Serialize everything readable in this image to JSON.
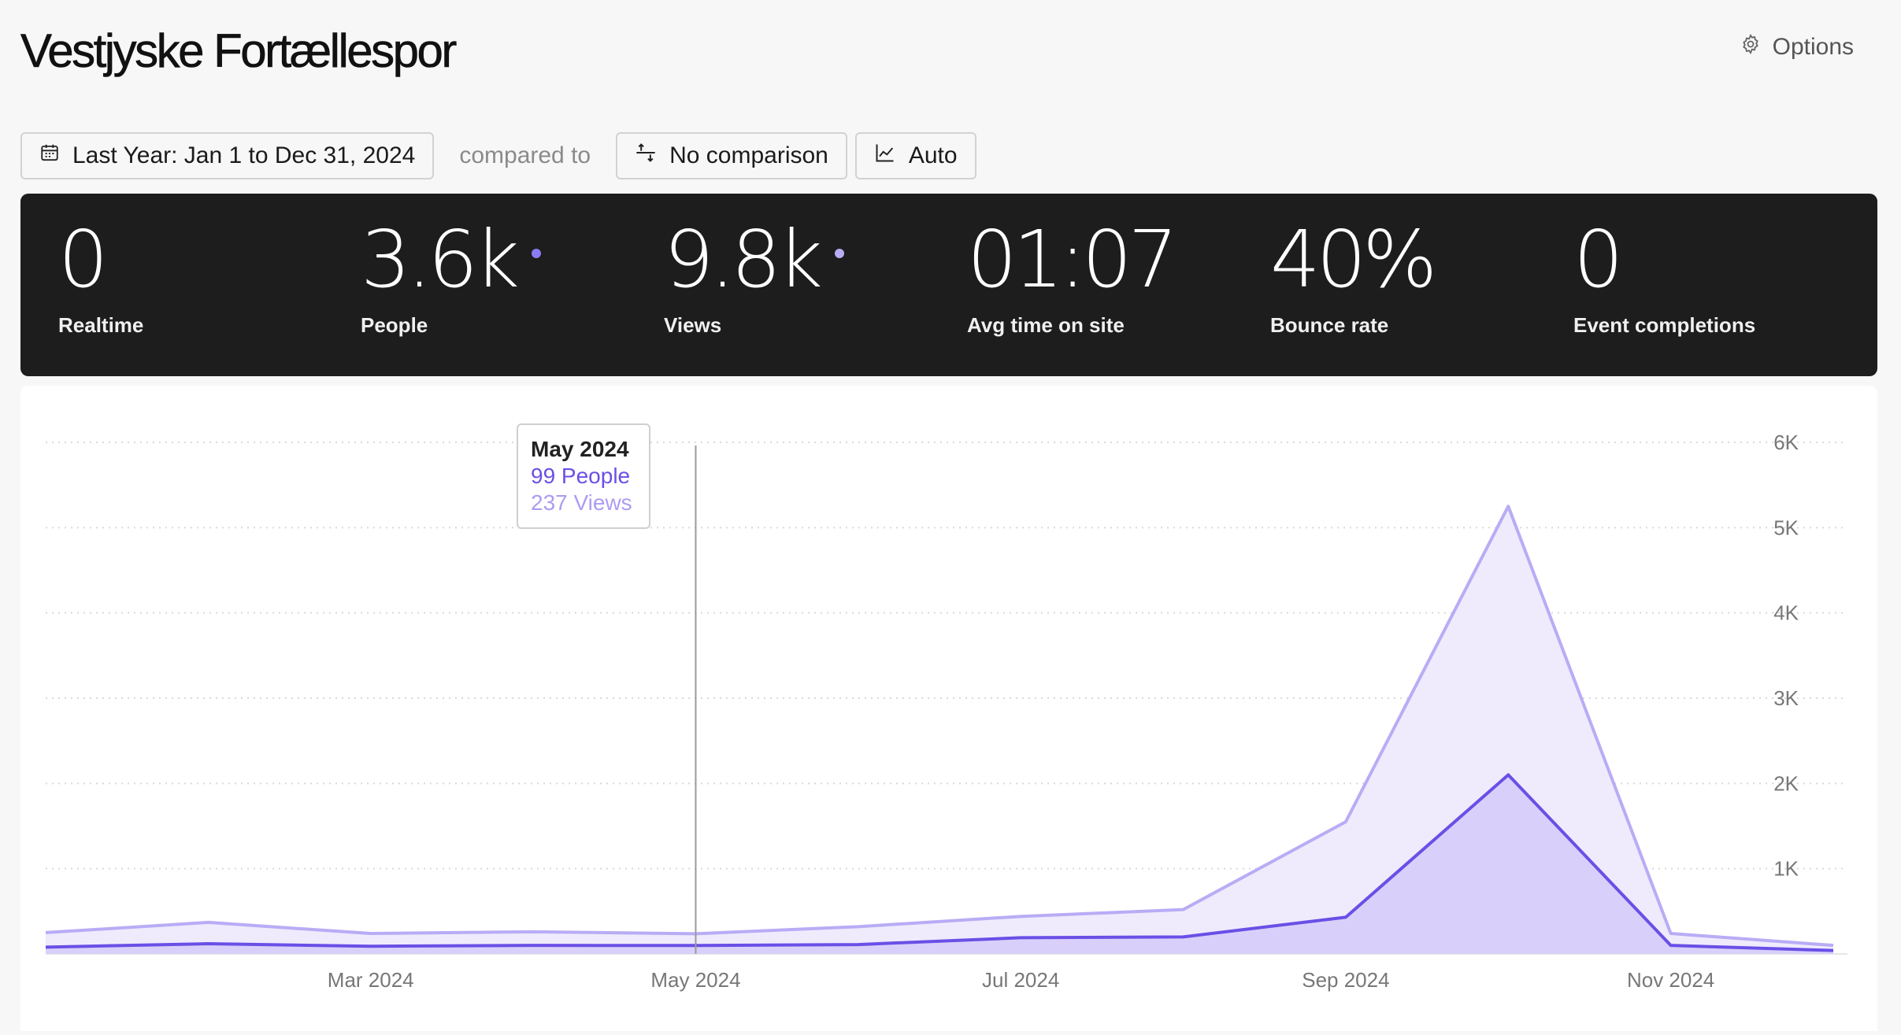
{
  "site": {
    "title": "Vestjyske Fortællespor",
    "options_label": "Options"
  },
  "toolbar": {
    "date_range_label": "Last Year: Jan 1 to Dec 31, 2024",
    "compared_to": "compared to",
    "comparison_label": "No comparison",
    "granularity_label": "Auto"
  },
  "stats": [
    {
      "value": "0",
      "label": "Realtime",
      "dot": false
    },
    {
      "value": "3.6k",
      "label": "People",
      "dot": true
    },
    {
      "value": "9.8k",
      "label": "Views",
      "dot": true
    },
    {
      "value": "01:07",
      "label": "Avg time on site",
      "dot": false
    },
    {
      "value": "40%",
      "label": "Bounce rate",
      "dot": false
    },
    {
      "value": "0",
      "label": "Event completions",
      "dot": false
    }
  ],
  "colors": {
    "people": "#6b4fe6",
    "views": "#b9acf5",
    "dark_panel": "#1c1d1c"
  },
  "tooltip": {
    "title": "May 2024",
    "people": "99 People",
    "views": "237 Views"
  },
  "chart_data": {
    "type": "area",
    "x": [
      "Jan 2024",
      "Feb 2024",
      "Mar 2024",
      "Apr 2024",
      "May 2024",
      "Jun 2024",
      "Jul 2024",
      "Aug 2024",
      "Sep 2024",
      "Oct 2024",
      "Nov 2024",
      "Dec 2024"
    ],
    "x_tick_labels": [
      "Mar 2024",
      "May 2024",
      "Jul 2024",
      "Sep 2024",
      "Nov 2024"
    ],
    "y_tick_labels": [
      "1K",
      "2K",
      "3K",
      "4K",
      "5K",
      "6K"
    ],
    "ylim": [
      0,
      6000
    ],
    "series": [
      {
        "name": "Views",
        "values": [
          250,
          370,
          240,
          260,
          237,
          320,
          440,
          520,
          1550,
          5250,
          240,
          100
        ]
      },
      {
        "name": "People",
        "values": [
          80,
          120,
          90,
          100,
          99,
          110,
          190,
          200,
          430,
          2100,
          100,
          40
        ]
      }
    ],
    "grid": true,
    "y_axis_position": "right",
    "highlighted_x": "May 2024"
  }
}
